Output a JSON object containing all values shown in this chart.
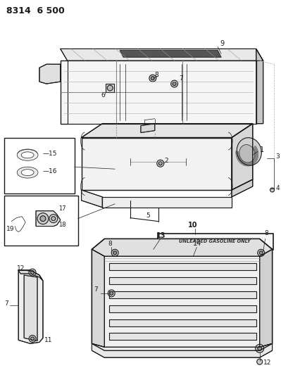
{
  "title": "8314  6 500",
  "bg": "#ffffff",
  "lc": "#1a1a1a",
  "gray1": "#cccccc",
  "gray2": "#aaaaaa",
  "gray3": "#888888",
  "unleaded_text": "UNLEADED GASOLINE ONLY",
  "fig_w": 3.99,
  "fig_h": 5.33,
  "dpi": 100
}
